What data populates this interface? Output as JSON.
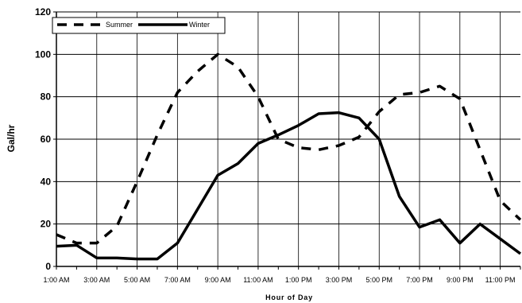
{
  "chart_data": {
    "type": "line",
    "title": "",
    "xlabel": "Hour of Day",
    "ylabel": "Gal/hr",
    "ylim": [
      0,
      120
    ],
    "yticks": [
      0,
      20,
      40,
      60,
      80,
      100,
      120
    ],
    "x": [
      "1:00 AM",
      "2:00 AM",
      "3:00 AM",
      "4:00 AM",
      "5:00 AM",
      "6:00 AM",
      "7:00 AM",
      "8:00 AM",
      "9:00 AM",
      "10:00 AM",
      "11:00 AM",
      "12:00 PM",
      "1:00 PM",
      "2:00 PM",
      "3:00 PM",
      "4:00 PM",
      "5:00 PM",
      "6:00 PM",
      "7:00 PM",
      "8:00 PM",
      "9:00 PM",
      "10:00 PM",
      "11:00 PM",
      "12:00 AM"
    ],
    "xtick_labels": [
      "1:00 AM",
      "3:00 AM",
      "5:00 AM",
      "7:00 AM",
      "9:00 AM",
      "11:00 AM",
      "1:00 PM",
      "3:00 PM",
      "5:00 PM",
      "7:00 PM",
      "9:00 PM",
      "11:00 PM"
    ],
    "grid": true,
    "legend_position": "top-left",
    "series": [
      {
        "name": "Summer",
        "style": "dashed",
        "color": "#000000",
        "values": [
          15,
          11,
          11,
          19,
          40,
          62,
          82,
          92,
          100,
          94,
          80,
          60,
          56,
          55,
          57,
          61,
          73,
          81,
          82,
          85,
          79,
          55,
          31,
          22
        ]
      },
      {
        "name": "Winter",
        "style": "solid",
        "color": "#000000",
        "values": [
          9.5,
          10,
          4,
          4,
          3.5,
          3.5,
          11,
          27,
          43,
          48.5,
          58,
          62,
          66.5,
          72,
          72.5,
          70,
          60,
          33,
          18.5,
          22,
          11,
          20,
          13,
          6
        ]
      }
    ]
  }
}
